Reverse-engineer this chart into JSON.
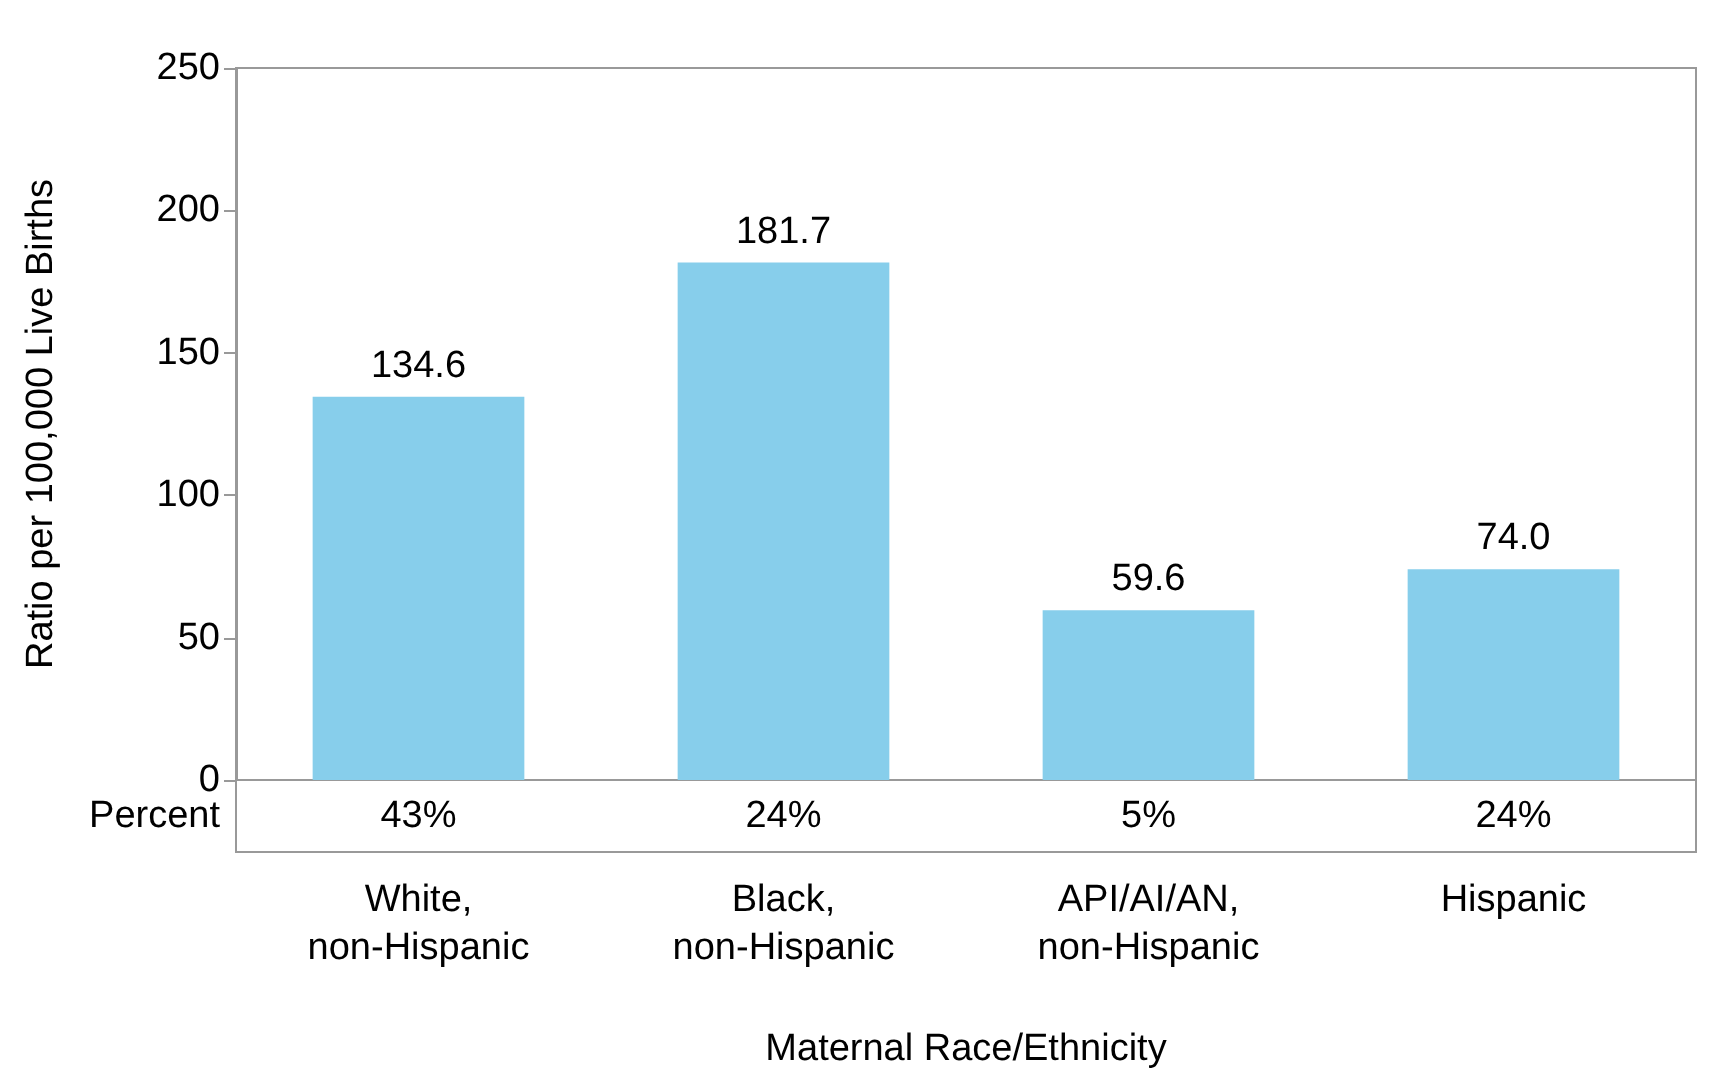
{
  "chart_data": {
    "type": "bar",
    "xlabel": "Maternal Race/Ethnicity",
    "ylabel": "Ratio per 100,000 Live Births",
    "categories": [
      "White,\nnon-Hispanic",
      "Black,\nnon-Hispanic",
      "API/AI/AN,\nnon-Hispanic",
      "Hispanic"
    ],
    "values": [
      134.6,
      181.7,
      59.6,
      74.0
    ],
    "value_labels": [
      "134.6",
      "181.7",
      "59.6",
      "74.0"
    ],
    "color": "#87ceeb",
    "ylim": [
      0,
      250
    ],
    "yticks": [
      0,
      50,
      100,
      150,
      200,
      250
    ],
    "grid": false,
    "annotations": [
      "Percent",
      "43%",
      "24%",
      "5%",
      "24%"
    ]
  }
}
